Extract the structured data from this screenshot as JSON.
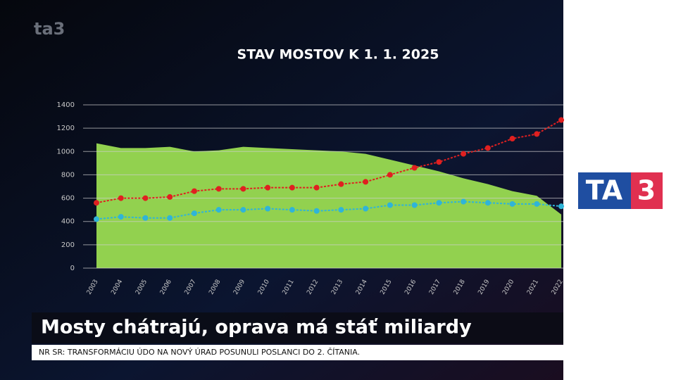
{
  "watermark": "ta3",
  "chart_data": {
    "type": "line",
    "title": "STAV MOSTOV K 1. 1. 2025",
    "categories": [
      "2003",
      "2004",
      "2005",
      "2006",
      "2007",
      "2008",
      "2009",
      "2010",
      "2011",
      "2012",
      "2013",
      "2014",
      "2015",
      "2016",
      "2017",
      "2018",
      "2019",
      "2020",
      "2021",
      "2022"
    ],
    "series": [
      {
        "type": "area",
        "color": "#92d14f",
        "values": [
          1070,
          1030,
          1030,
          1040,
          1000,
          1010,
          1040,
          1030,
          1020,
          1010,
          1000,
          980,
          930,
          880,
          830,
          770,
          720,
          660,
          620,
          460
        ]
      },
      {
        "type": "line",
        "color": "#e02020",
        "values": [
          560,
          600,
          600,
          610,
          660,
          680,
          680,
          690,
          690,
          690,
          720,
          740,
          800,
          860,
          910,
          980,
          1030,
          1110,
          1150,
          1270
        ]
      },
      {
        "type": "line",
        "color": "#2fb4d8",
        "values": [
          420,
          440,
          430,
          430,
          470,
          500,
          500,
          510,
          500,
          490,
          500,
          510,
          540,
          540,
          560,
          570,
          560,
          550,
          550,
          530
        ]
      }
    ],
    "ylim": [
      0,
      1400
    ],
    "yticks": [
      0,
      200,
      400,
      600,
      800,
      1000,
      1200,
      1400
    ],
    "grid": true
  },
  "headline": "Mosty chátrajú, oprava má stáť miliardy",
  "ticker": "NR SR: TRANSFORMÁCIU ÚDO NA NOVÝ ÚRAD POSUNULI POSLANCI DO 2. ČÍTANIA.",
  "logo": {
    "left": "TA",
    "right": "3"
  }
}
